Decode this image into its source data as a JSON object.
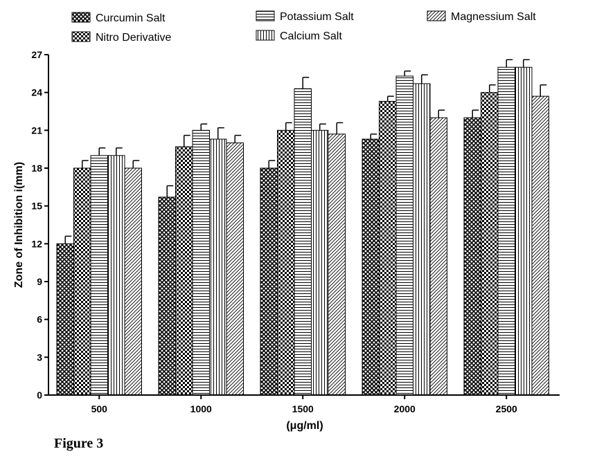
{
  "figure_caption": "Figure 3",
  "chart_data": {
    "type": "bar",
    "xlabel": "(μg/ml)",
    "ylabel": "Zone of Inhibition i(mm)",
    "ylim": [
      0,
      27
    ],
    "yticks": [
      0,
      3,
      6,
      9,
      12,
      15,
      18,
      21,
      24,
      27
    ],
    "categories": [
      "500",
      "1000",
      "1500",
      "2000",
      "2500"
    ],
    "error_bars": true,
    "grid": false,
    "legend_position": "top",
    "series": [
      {
        "name": "Curcumin Salt",
        "pattern": "crosshatch",
        "values": [
          12.0,
          15.7,
          18.0,
          20.3,
          22.0
        ],
        "errors": [
          0.6,
          0.9,
          0.6,
          0.4,
          0.6
        ]
      },
      {
        "name": "Nitro Derivative",
        "pattern": "checker",
        "values": [
          18.0,
          19.7,
          21.0,
          23.3,
          24.0
        ],
        "errors": [
          0.6,
          0.9,
          0.6,
          0.4,
          0.6
        ]
      },
      {
        "name": "Potassium  Salt",
        "pattern": "horizontal",
        "values": [
          19.0,
          21.0,
          24.3,
          25.3,
          26.0
        ],
        "errors": [
          0.6,
          0.5,
          0.9,
          0.4,
          0.6
        ]
      },
      {
        "name": "Calcium Salt",
        "pattern": "vertical",
        "values": [
          19.0,
          20.3,
          21.0,
          24.7,
          26.0
        ],
        "errors": [
          0.6,
          0.9,
          0.5,
          0.7,
          0.6
        ]
      },
      {
        "name": "Magnessium Salt",
        "pattern": "diagonal",
        "values": [
          18.0,
          20.0,
          20.7,
          22.0,
          23.7
        ],
        "errors": [
          0.6,
          0.6,
          0.9,
          0.6,
          0.9
        ]
      }
    ]
  }
}
